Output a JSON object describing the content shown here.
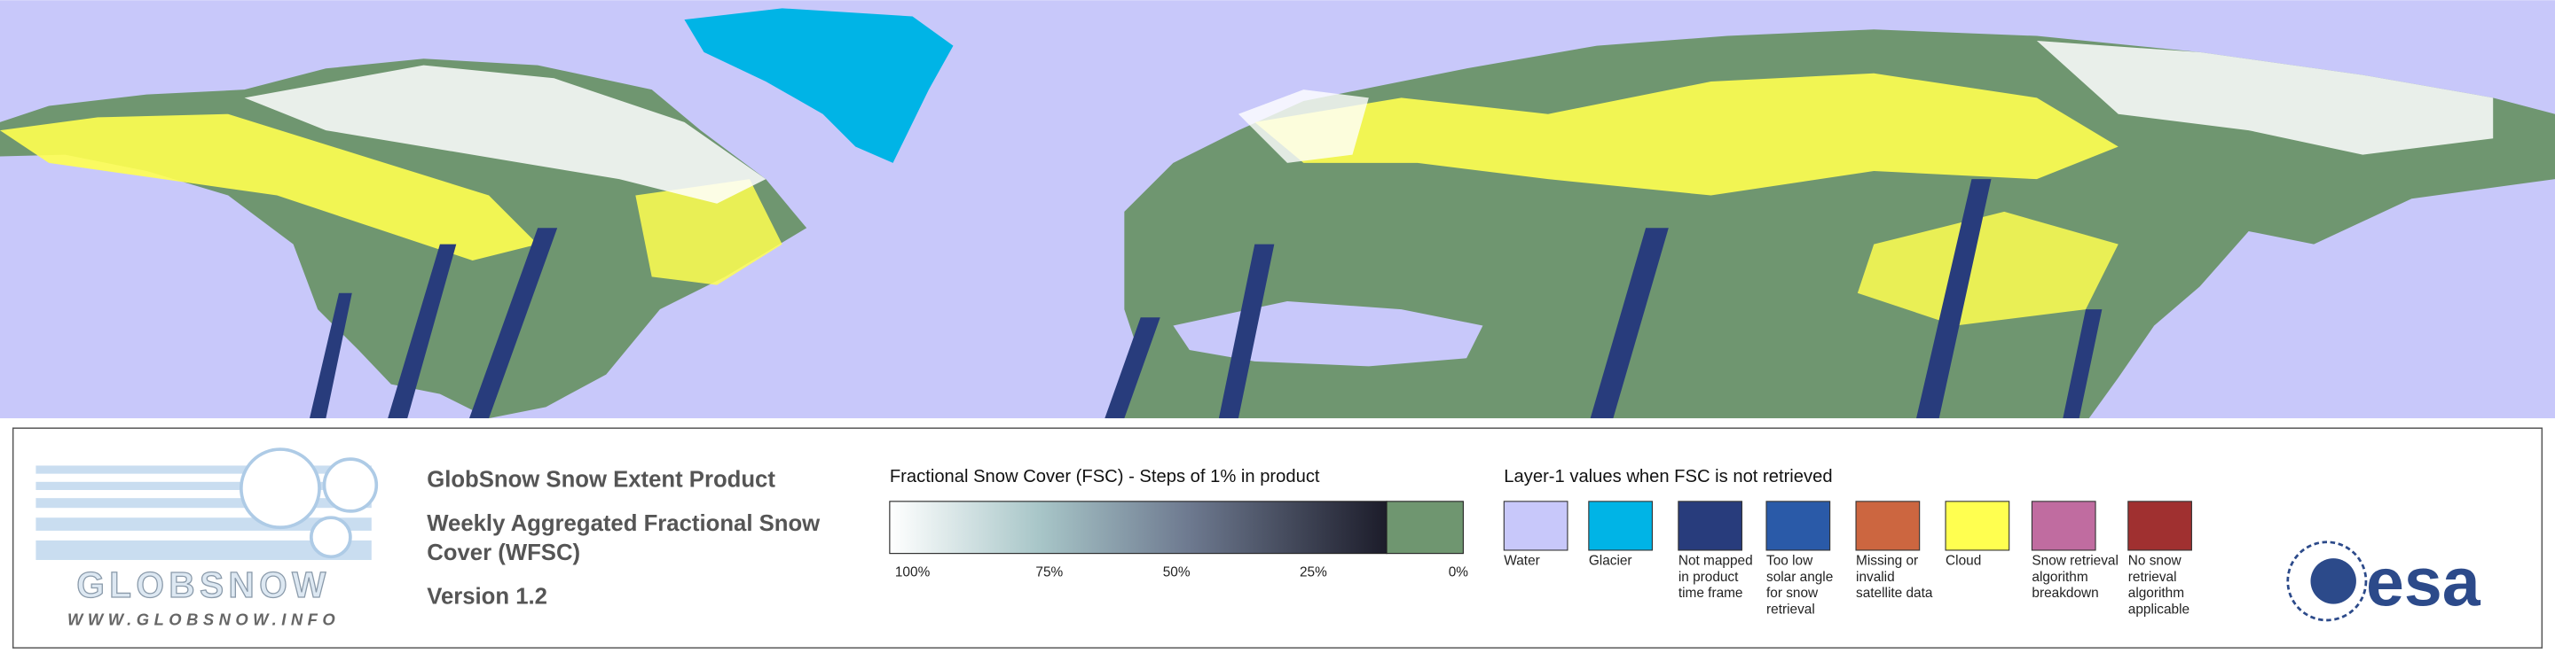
{
  "logo": {
    "brand": "GLOBSNOW",
    "url": "WWW.GLOBSNOW.INFO"
  },
  "product": {
    "title": "GlobSnow Snow Extent Product",
    "subtitle": "Weekly Aggregated Fractional Snow Cover (WFSC)",
    "version": "Version 1.2"
  },
  "fsc_legend": {
    "title": "Fractional Snow Cover (FSC) - Steps of 1% in product",
    "ticks": [
      "100%",
      "75%",
      "50%",
      "25%",
      "0%"
    ]
  },
  "layer1_legend": {
    "title": "Layer-1 values when FSC is not retrieved",
    "items": [
      {
        "label": "Water",
        "color": "#c8c8fa"
      },
      {
        "label": "Glacier",
        "color": "#00b4e6"
      },
      {
        "label": "Not mapped in product time frame",
        "color": "#283c7c"
      },
      {
        "label": "Too low solar angle for snow retrieval",
        "color": "#2a5aa8"
      },
      {
        "label": "Missing or invalid satellite data",
        "color": "#cc6640"
      },
      {
        "label": "Cloud",
        "color": "#ffff50"
      },
      {
        "label": "Snow retrieval algorithm breakdown",
        "color": "#c06ca0"
      },
      {
        "label": "No snow retrieval algorithm applicable",
        "color": "#a03030"
      }
    ]
  },
  "esa_logo": "esa"
}
